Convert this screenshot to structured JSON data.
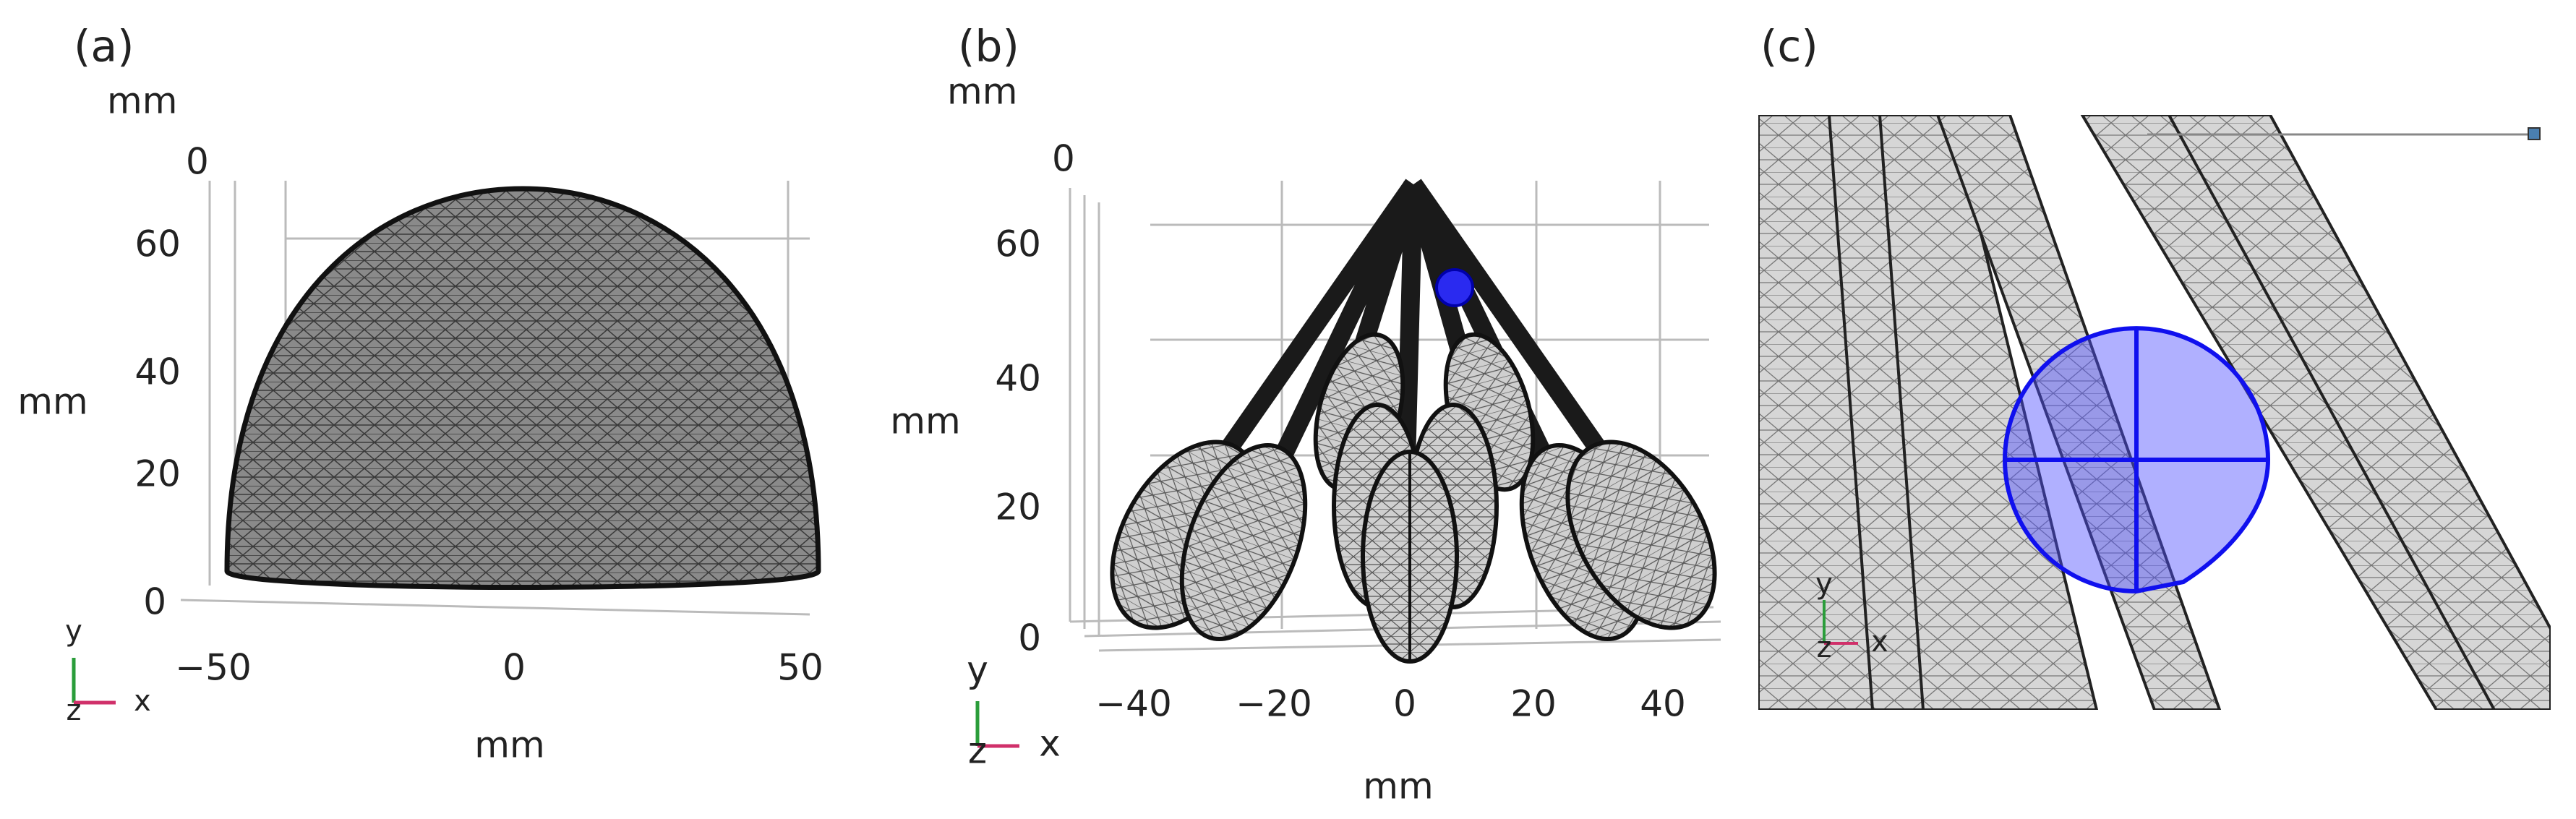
{
  "panels": [
    {
      "label": "(a)",
      "top_unit": "mm",
      "y_label": "mm",
      "x_label": "mm",
      "z_tick": "0",
      "y_ticks": [
        "60",
        "40",
        "20",
        "0"
      ],
      "x_ticks": [
        "−50",
        "0",
        "50"
      ],
      "triad": {
        "up": "y",
        "out": "z",
        "right": "x"
      }
    },
    {
      "label": "(b)",
      "top_unit": "mm",
      "y_label": "mm",
      "x_label": "mm",
      "z_tick": "0",
      "y_ticks": [
        "60",
        "40",
        "20",
        "0"
      ],
      "x_ticks": [
        "−40",
        "−20",
        "0",
        "20",
        "40"
      ],
      "triad": {
        "up": "y",
        "out": "z",
        "right": "x"
      }
    },
    {
      "label": "(c)",
      "triad": {
        "up": "y",
        "out": "z",
        "right": "x"
      }
    }
  ]
}
